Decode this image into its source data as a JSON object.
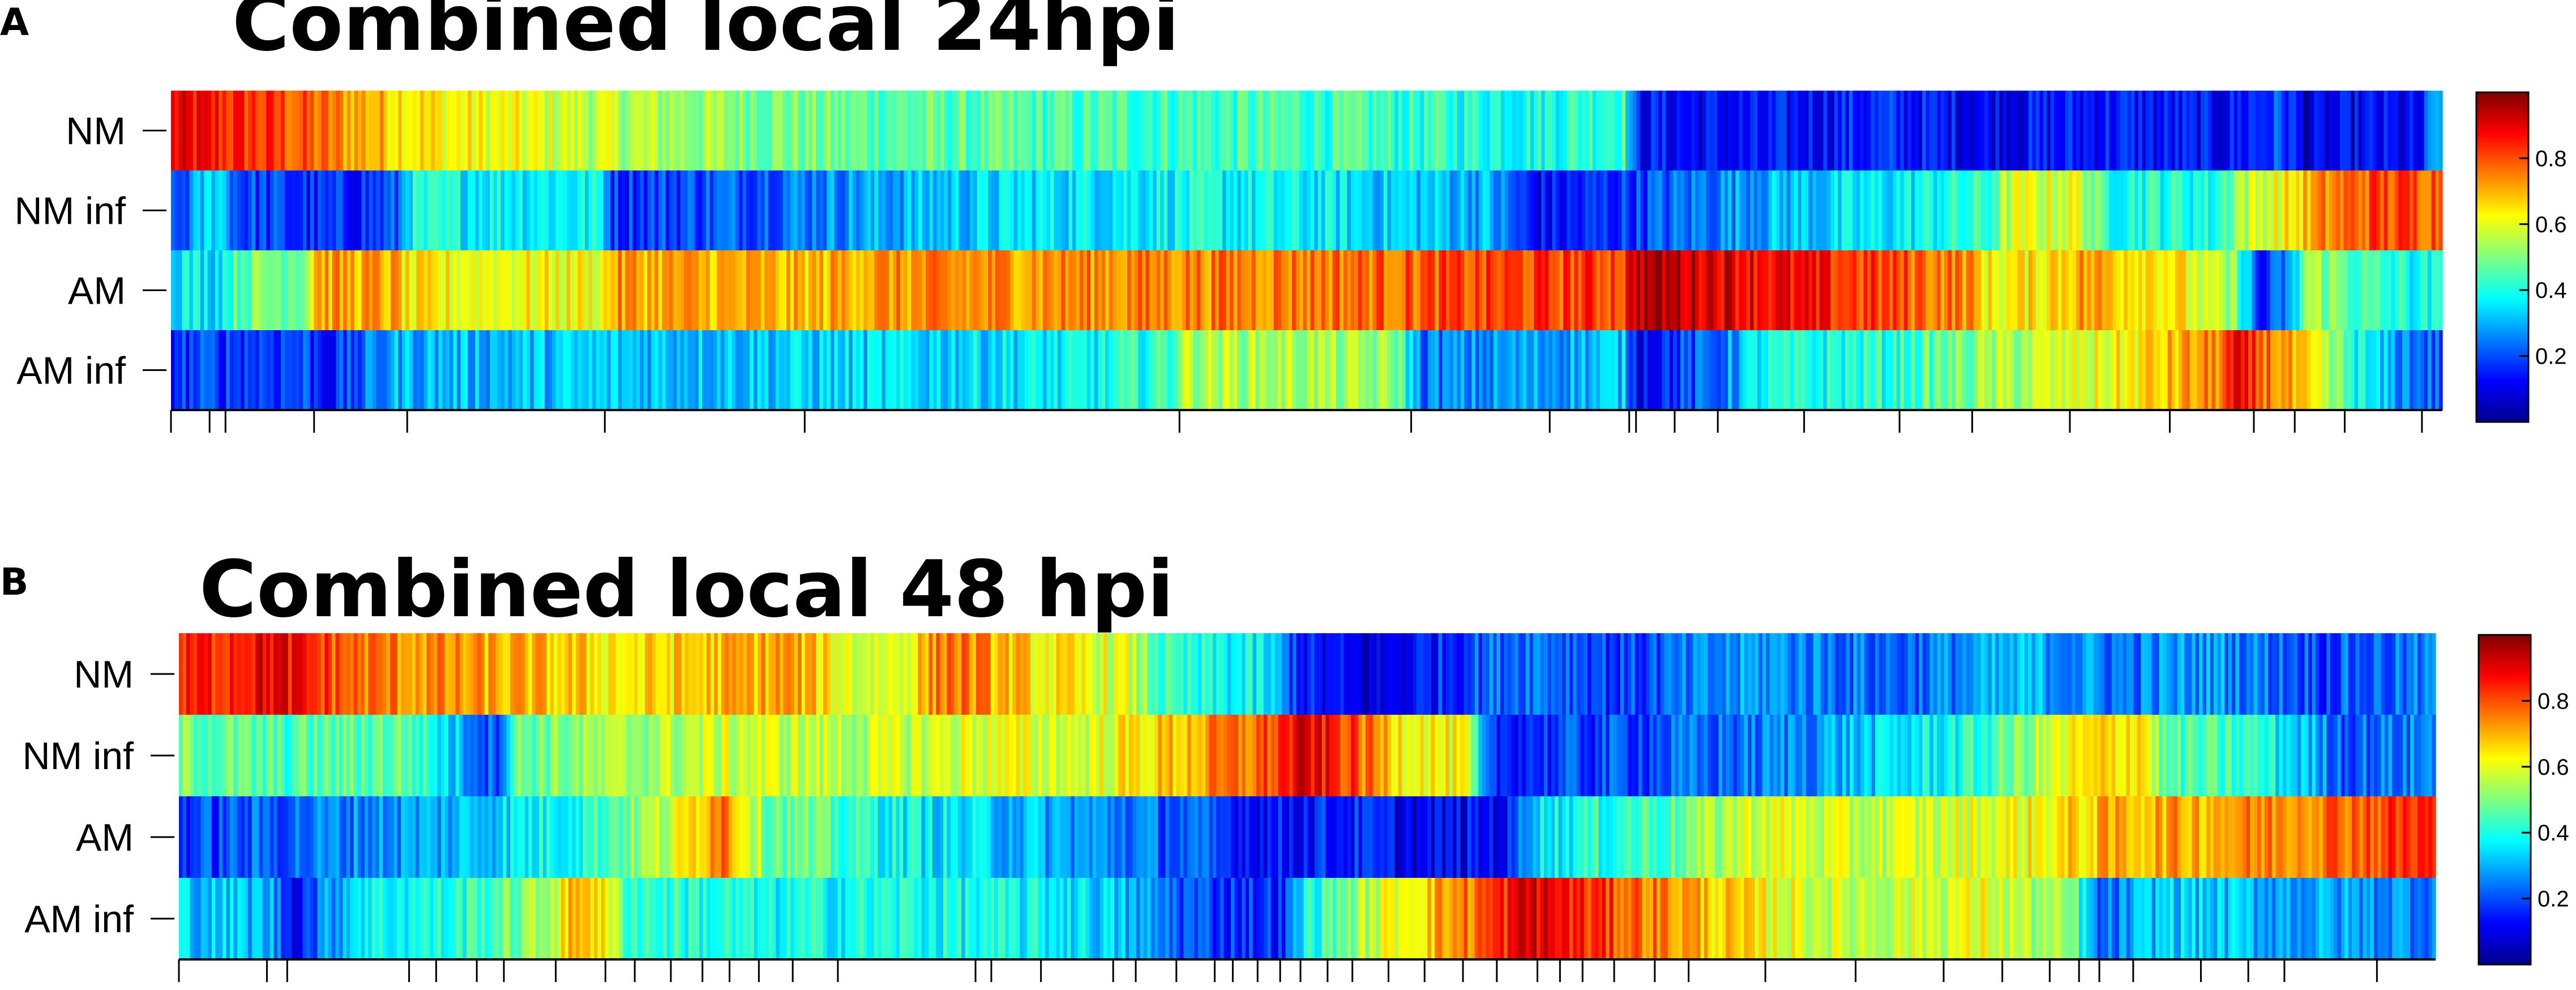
{
  "chart_data": [
    {
      "type": "heatmap",
      "panel": "A",
      "title": "Combined local 24hpi",
      "rows": [
        "NM",
        "NM inf",
        "AM",
        "AM inf"
      ],
      "colorbar": {
        "ticks": [
          0.2,
          0.4,
          0.6,
          0.8
        ],
        "range": [
          0,
          1
        ],
        "colormap": "jet"
      },
      "x_ticks_fraction": [
        0.0,
        0.017,
        0.024,
        0.063,
        0.104,
        0.191,
        0.279,
        0.444,
        0.546,
        0.607,
        0.642,
        0.645,
        0.662,
        0.681,
        0.719,
        0.761,
        0.793,
        0.836,
        0.88,
        0.917,
        0.935,
        0.957,
        0.991
      ],
      "profiles": [
        [
          [
            0,
            0.88
          ],
          [
            0.05,
            0.8
          ],
          [
            0.08,
            0.72
          ],
          [
            0.12,
            0.63
          ],
          [
            0.2,
            0.55
          ],
          [
            0.3,
            0.47
          ],
          [
            0.4,
            0.44
          ],
          [
            0.5,
            0.44
          ],
          [
            0.55,
            0.42
          ],
          [
            0.6,
            0.4
          ],
          [
            0.64,
            0.45
          ],
          [
            0.645,
            0.14
          ],
          [
            0.7,
            0.12
          ],
          [
            0.75,
            0.16
          ],
          [
            0.8,
            0.12
          ],
          [
            0.85,
            0.15
          ],
          [
            0.9,
            0.12
          ],
          [
            0.93,
            0.2
          ],
          [
            0.94,
            0.08
          ],
          [
            0.97,
            0.12
          ],
          [
            0.99,
            0.1
          ],
          [
            1.0,
            0.36
          ]
        ],
        [
          [
            0,
            0.14
          ],
          [
            0.02,
            0.38
          ],
          [
            0.03,
            0.2
          ],
          [
            0.07,
            0.15
          ],
          [
            0.1,
            0.2
          ],
          [
            0.104,
            0.38
          ],
          [
            0.15,
            0.38
          ],
          [
            0.19,
            0.37
          ],
          [
            0.195,
            0.18
          ],
          [
            0.25,
            0.22
          ],
          [
            0.3,
            0.28
          ],
          [
            0.38,
            0.35
          ],
          [
            0.44,
            0.38
          ],
          [
            0.5,
            0.36
          ],
          [
            0.58,
            0.3
          ],
          [
            0.6,
            0.12
          ],
          [
            0.64,
            0.18
          ],
          [
            0.7,
            0.3
          ],
          [
            0.75,
            0.35
          ],
          [
            0.8,
            0.42
          ],
          [
            0.81,
            0.58
          ],
          [
            0.84,
            0.6
          ],
          [
            0.85,
            0.42
          ],
          [
            0.9,
            0.4
          ],
          [
            0.91,
            0.55
          ],
          [
            0.93,
            0.62
          ],
          [
            0.95,
            0.74
          ],
          [
            0.97,
            0.8
          ],
          [
            1.0,
            0.8
          ]
        ],
        [
          [
            0,
            0.38
          ],
          [
            0.02,
            0.36
          ],
          [
            0.03,
            0.48
          ],
          [
            0.06,
            0.52
          ],
          [
            0.063,
            0.72
          ],
          [
            0.1,
            0.7
          ],
          [
            0.104,
            0.62
          ],
          [
            0.19,
            0.62
          ],
          [
            0.195,
            0.72
          ],
          [
            0.28,
            0.68
          ],
          [
            0.3,
            0.72
          ],
          [
            0.4,
            0.74
          ],
          [
            0.5,
            0.76
          ],
          [
            0.58,
            0.8
          ],
          [
            0.64,
            0.82
          ],
          [
            0.645,
            0.96
          ],
          [
            0.68,
            0.92
          ],
          [
            0.72,
            0.85
          ],
          [
            0.79,
            0.75
          ],
          [
            0.8,
            0.62
          ],
          [
            0.82,
            0.64
          ],
          [
            0.84,
            0.72
          ],
          [
            0.88,
            0.66
          ],
          [
            0.91,
            0.48
          ],
          [
            0.92,
            0.12
          ],
          [
            0.935,
            0.3
          ],
          [
            0.94,
            0.55
          ],
          [
            0.97,
            0.42
          ],
          [
            1.0,
            0.36
          ]
        ],
        [
          [
            0,
            0.18
          ],
          [
            0.06,
            0.2
          ],
          [
            0.07,
            0.14
          ],
          [
            0.1,
            0.3
          ],
          [
            0.2,
            0.32
          ],
          [
            0.3,
            0.33
          ],
          [
            0.4,
            0.36
          ],
          [
            0.44,
            0.44
          ],
          [
            0.445,
            0.55
          ],
          [
            0.5,
            0.54
          ],
          [
            0.54,
            0.5
          ],
          [
            0.55,
            0.24
          ],
          [
            0.6,
            0.28
          ],
          [
            0.64,
            0.32
          ],
          [
            0.645,
            0.14
          ],
          [
            0.68,
            0.22
          ],
          [
            0.7,
            0.38
          ],
          [
            0.76,
            0.42
          ],
          [
            0.8,
            0.52
          ],
          [
            0.85,
            0.6
          ],
          [
            0.88,
            0.68
          ],
          [
            0.9,
            0.74
          ],
          [
            0.91,
            0.86
          ],
          [
            0.93,
            0.72
          ],
          [
            0.95,
            0.52
          ],
          [
            0.97,
            0.32
          ],
          [
            1.0,
            0.2
          ]
        ]
      ]
    },
    {
      "type": "heatmap",
      "panel": "B",
      "title": "Combined local 48 hpi",
      "rows": [
        "NM",
        "NM inf",
        "AM",
        "AM inf"
      ],
      "colorbar": {
        "ticks": [
          0.2,
          0.4,
          0.6,
          0.8
        ],
        "range": [
          0,
          1
        ],
        "colormap": "jet"
      },
      "x_ticks_fraction": [
        0.0,
        0.039,
        0.048,
        0.102,
        0.114,
        0.132,
        0.144,
        0.167,
        0.189,
        0.202,
        0.218,
        0.232,
        0.244,
        0.257,
        0.272,
        0.292,
        0.353,
        0.36,
        0.382,
        0.414,
        0.424,
        0.442,
        0.459,
        0.467,
        0.478,
        0.488,
        0.497,
        0.509,
        0.52,
        0.536,
        0.552,
        0.569,
        0.584,
        0.602,
        0.612,
        0.622,
        0.636,
        0.654,
        0.669,
        0.703,
        0.743,
        0.782,
        0.808,
        0.829,
        0.842,
        0.851,
        0.866,
        0.896,
        0.917,
        0.933,
        0.974
      ],
      "profiles": [
        [
          [
            0,
            0.82
          ],
          [
            0.04,
            0.9
          ],
          [
            0.08,
            0.76
          ],
          [
            0.14,
            0.7
          ],
          [
            0.2,
            0.64
          ],
          [
            0.27,
            0.72
          ],
          [
            0.3,
            0.58
          ],
          [
            0.32,
            0.6
          ],
          [
            0.34,
            0.78
          ],
          [
            0.38,
            0.64
          ],
          [
            0.42,
            0.58
          ],
          [
            0.44,
            0.4
          ],
          [
            0.48,
            0.36
          ],
          [
            0.5,
            0.14
          ],
          [
            0.53,
            0.08
          ],
          [
            0.57,
            0.2
          ],
          [
            0.6,
            0.26
          ],
          [
            0.64,
            0.18
          ],
          [
            0.7,
            0.28
          ],
          [
            0.76,
            0.22
          ],
          [
            0.82,
            0.3
          ],
          [
            0.86,
            0.24
          ],
          [
            0.9,
            0.28
          ],
          [
            0.95,
            0.2
          ],
          [
            1.0,
            0.24
          ]
        ],
        [
          [
            0,
            0.5
          ],
          [
            0.04,
            0.44
          ],
          [
            0.1,
            0.48
          ],
          [
            0.14,
            0.2
          ],
          [
            0.15,
            0.48
          ],
          [
            0.25,
            0.58
          ],
          [
            0.3,
            0.55
          ],
          [
            0.36,
            0.6
          ],
          [
            0.4,
            0.58
          ],
          [
            0.44,
            0.68
          ],
          [
            0.48,
            0.78
          ],
          [
            0.5,
            0.9
          ],
          [
            0.52,
            0.8
          ],
          [
            0.54,
            0.66
          ],
          [
            0.57,
            0.6
          ],
          [
            0.58,
            0.16
          ],
          [
            0.64,
            0.2
          ],
          [
            0.7,
            0.24
          ],
          [
            0.76,
            0.34
          ],
          [
            0.8,
            0.42
          ],
          [
            0.84,
            0.62
          ],
          [
            0.87,
            0.68
          ],
          [
            0.88,
            0.45
          ],
          [
            0.92,
            0.42
          ],
          [
            0.96,
            0.22
          ],
          [
            1.0,
            0.26
          ]
        ],
        [
          [
            0,
            0.18
          ],
          [
            0.06,
            0.24
          ],
          [
            0.12,
            0.3
          ],
          [
            0.18,
            0.42
          ],
          [
            0.22,
            0.58
          ],
          [
            0.24,
            0.8
          ],
          [
            0.26,
            0.5
          ],
          [
            0.32,
            0.38
          ],
          [
            0.38,
            0.3
          ],
          [
            0.44,
            0.22
          ],
          [
            0.48,
            0.14
          ],
          [
            0.52,
            0.16
          ],
          [
            0.55,
            0.1
          ],
          [
            0.59,
            0.14
          ],
          [
            0.6,
            0.36
          ],
          [
            0.66,
            0.46
          ],
          [
            0.7,
            0.6
          ],
          [
            0.74,
            0.56
          ],
          [
            0.78,
            0.58
          ],
          [
            0.82,
            0.62
          ],
          [
            0.86,
            0.7
          ],
          [
            0.9,
            0.72
          ],
          [
            0.94,
            0.76
          ],
          [
            1.0,
            0.84
          ]
        ],
        [
          [
            0,
            0.34
          ],
          [
            0.04,
            0.3
          ],
          [
            0.05,
            0.14
          ],
          [
            0.08,
            0.38
          ],
          [
            0.12,
            0.4
          ],
          [
            0.16,
            0.52
          ],
          [
            0.18,
            0.74
          ],
          [
            0.2,
            0.44
          ],
          [
            0.26,
            0.38
          ],
          [
            0.32,
            0.4
          ],
          [
            0.4,
            0.36
          ],
          [
            0.45,
            0.2
          ],
          [
            0.49,
            0.16
          ],
          [
            0.5,
            0.4
          ],
          [
            0.54,
            0.62
          ],
          [
            0.58,
            0.8
          ],
          [
            0.6,
            0.92
          ],
          [
            0.62,
            0.84
          ],
          [
            0.66,
            0.74
          ],
          [
            0.7,
            0.62
          ],
          [
            0.74,
            0.56
          ],
          [
            0.8,
            0.6
          ],
          [
            0.84,
            0.48
          ],
          [
            0.85,
            0.2
          ],
          [
            0.88,
            0.34
          ],
          [
            0.92,
            0.3
          ],
          [
            0.96,
            0.28
          ],
          [
            1.0,
            0.26
          ]
        ]
      ]
    }
  ]
}
